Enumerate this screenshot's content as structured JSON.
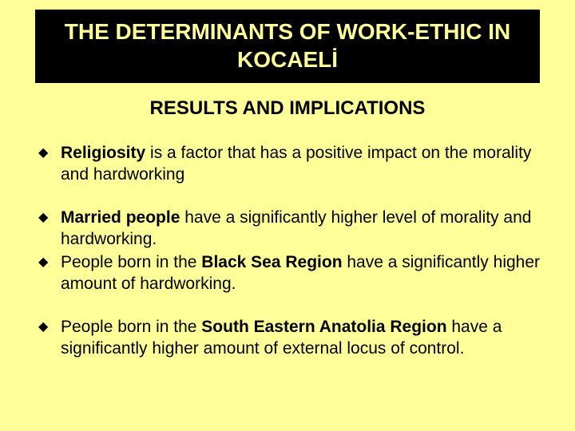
{
  "title": "THE DETERMINANTS OF WORK-ETHIC IN KOCAELİ",
  "subtitle": "RESULTS AND IMPLICATIONS",
  "bullets": {
    "group1": {
      "b1_bold": "Religiosity",
      "b1_rest": " is a factor that has a positive impact on the morality and hardworking"
    },
    "group2": {
      "b1_bold": "Married people",
      "b1_rest": " have a significantly higher level of morality and hardworking.",
      "b2_pre": "People born in the ",
      "b2_bold": "Black Sea Region",
      "b2_rest": " have a significantly higher amount of hardworking."
    },
    "group3": {
      "b1_pre": "People born in the ",
      "b1_bold": "South Eastern Anatolia Region",
      "b1_rest": " have a significantly higher amount of external locus of control."
    }
  },
  "colors": {
    "slide_bg": "#ffff99",
    "title_bg": "#000000",
    "title_fg": "#ffff99",
    "text": "#000000"
  },
  "bullet_marker": "◆"
}
